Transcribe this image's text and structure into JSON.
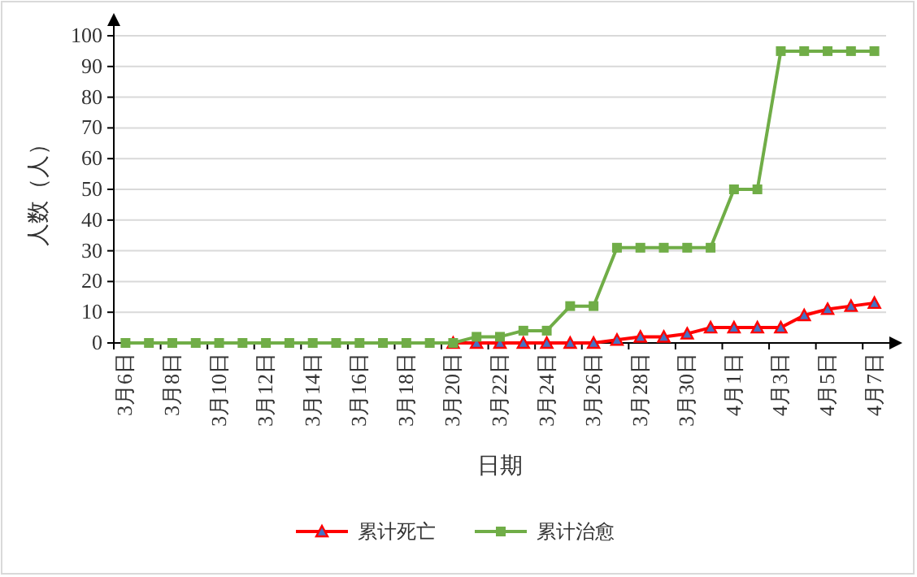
{
  "chart_data": {
    "type": "line",
    "xlabel": "日期",
    "ylabel": "人数（人）",
    "categories": [
      "3月6日",
      null,
      "3月8日",
      null,
      "3月10日",
      null,
      "3月12日",
      null,
      "3月14日",
      null,
      "3月16日",
      null,
      "3月18日",
      null,
      "3月20日",
      null,
      "3月22日",
      null,
      "3月24日",
      null,
      "3月26日",
      null,
      "3月28日",
      null,
      "3月30日",
      null,
      "4月1日",
      null,
      "4月3日",
      null,
      "4月5日",
      null,
      "4月7日"
    ],
    "series": [
      {
        "name": "累计死亡",
        "color": "#ff0000",
        "marker": "triangle",
        "values": [
          null,
          null,
          null,
          null,
          null,
          null,
          null,
          null,
          null,
          null,
          null,
          null,
          null,
          null,
          0,
          0,
          0,
          0,
          0,
          0,
          0,
          1,
          2,
          2,
          3,
          5,
          5,
          5,
          5,
          9,
          11,
          12,
          13
        ]
      },
      {
        "name": "累计治愈",
        "color": "#70ad47",
        "marker": "square",
        "values": [
          0,
          0,
          0,
          0,
          0,
          0,
          0,
          0,
          0,
          0,
          0,
          0,
          0,
          0,
          0,
          2,
          2,
          4,
          4,
          12,
          12,
          31,
          31,
          31,
          31,
          31,
          50,
          50,
          95,
          95,
          95,
          95,
          95
        ]
      }
    ],
    "ylim": [
      0,
      100
    ],
    "yticks": [
      0,
      10,
      20,
      30,
      40,
      50,
      60,
      70,
      80,
      90,
      100
    ],
    "grid": "y",
    "legend": "bottom"
  }
}
